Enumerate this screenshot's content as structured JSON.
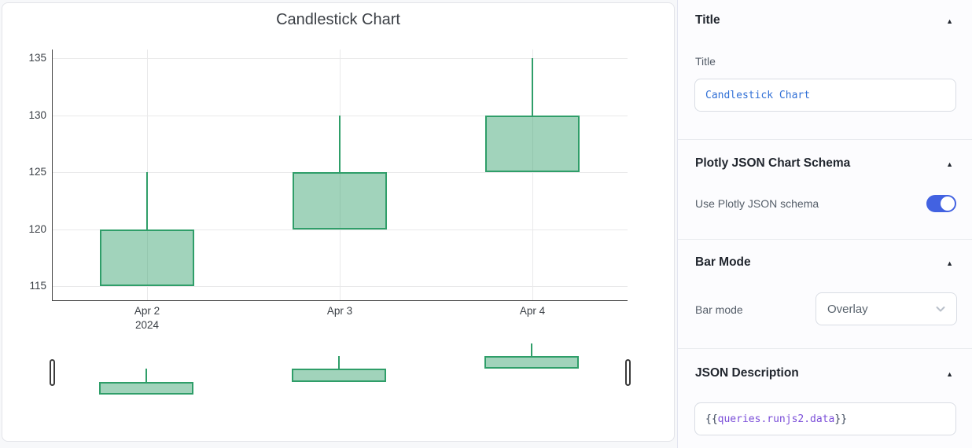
{
  "chart_data": {
    "type": "candlestick",
    "title": "Candlestick Chart",
    "x": [
      "Apr 2",
      "Apr 3",
      "Apr 4"
    ],
    "x_sub_labels": [
      "2024",
      "",
      ""
    ],
    "open": [
      115,
      120,
      125
    ],
    "high": [
      125,
      130,
      135
    ],
    "low": [
      115,
      120,
      125
    ],
    "close": [
      120,
      125,
      130
    ],
    "yticks": [
      115,
      120,
      125,
      130,
      135
    ],
    "ylim": [
      113.7,
      135.8
    ],
    "grid": true,
    "legend": "none",
    "rangeslider": true,
    "increasing_line_color": "#2f9e69",
    "increasing_fill_color": "rgba(47,158,105,0.45)"
  },
  "panel": {
    "title_section": {
      "header": "Title",
      "label": "Title",
      "value": "Candlestick Chart",
      "collapse_icon": "▲"
    },
    "schema_section": {
      "header": "Plotly JSON Chart Schema",
      "label": "Use Plotly JSON schema",
      "toggle_state": "on",
      "toggle_color": "#4262e1",
      "collapse_icon": "▲"
    },
    "barmode_section": {
      "header": "Bar Mode",
      "label": "Bar mode",
      "value": "Overlay",
      "collapse_icon": "▲"
    },
    "json_section": {
      "header": "JSON Description",
      "value_open": "{{",
      "value_expr": "queries.runjs2.data",
      "value_close": "}}",
      "collapse_icon": "▲"
    }
  }
}
